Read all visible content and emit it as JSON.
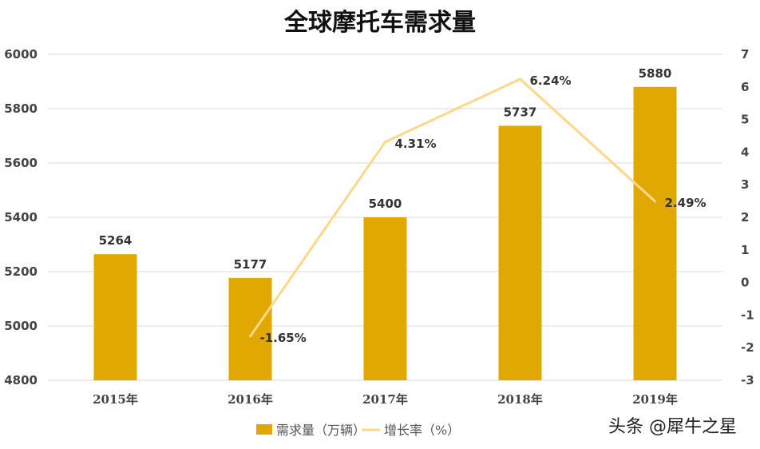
{
  "chart_data": {
    "type": "bar+line",
    "title": "全球摩托车需求量",
    "categories": [
      "2015年",
      "2016年",
      "2017年",
      "2018年",
      "2019年"
    ],
    "series": [
      {
        "name": "需求量（万辆）",
        "type": "bar",
        "axis": "left",
        "color": "#E0A800",
        "values": [
          5264,
          5177,
          5400,
          5737,
          5880
        ],
        "labels": [
          "5264",
          "5177",
          "5400",
          "5737",
          "5880"
        ]
      },
      {
        "name": "增长率（%）",
        "type": "line",
        "axis": "right",
        "color": "#FDD88A",
        "values": [
          null,
          -1.65,
          4.31,
          6.24,
          2.49
        ],
        "labels": [
          "",
          "-1.65%",
          "4.31%",
          "6.24%",
          "2.49%"
        ]
      }
    ],
    "ylim_left": [
      4800,
      6000
    ],
    "yticks_left": [
      "4800",
      "5000",
      "5200",
      "5400",
      "5600",
      "5800",
      "6000"
    ],
    "ylim_right": [
      -3,
      7
    ],
    "yticks_right": [
      "-3",
      "-2",
      "-1",
      "0",
      "1",
      "2",
      "3",
      "4",
      "5",
      "6",
      "7"
    ],
    "grid": true,
    "legend_position": "bottom"
  },
  "watermark": "头条 @犀牛之星"
}
